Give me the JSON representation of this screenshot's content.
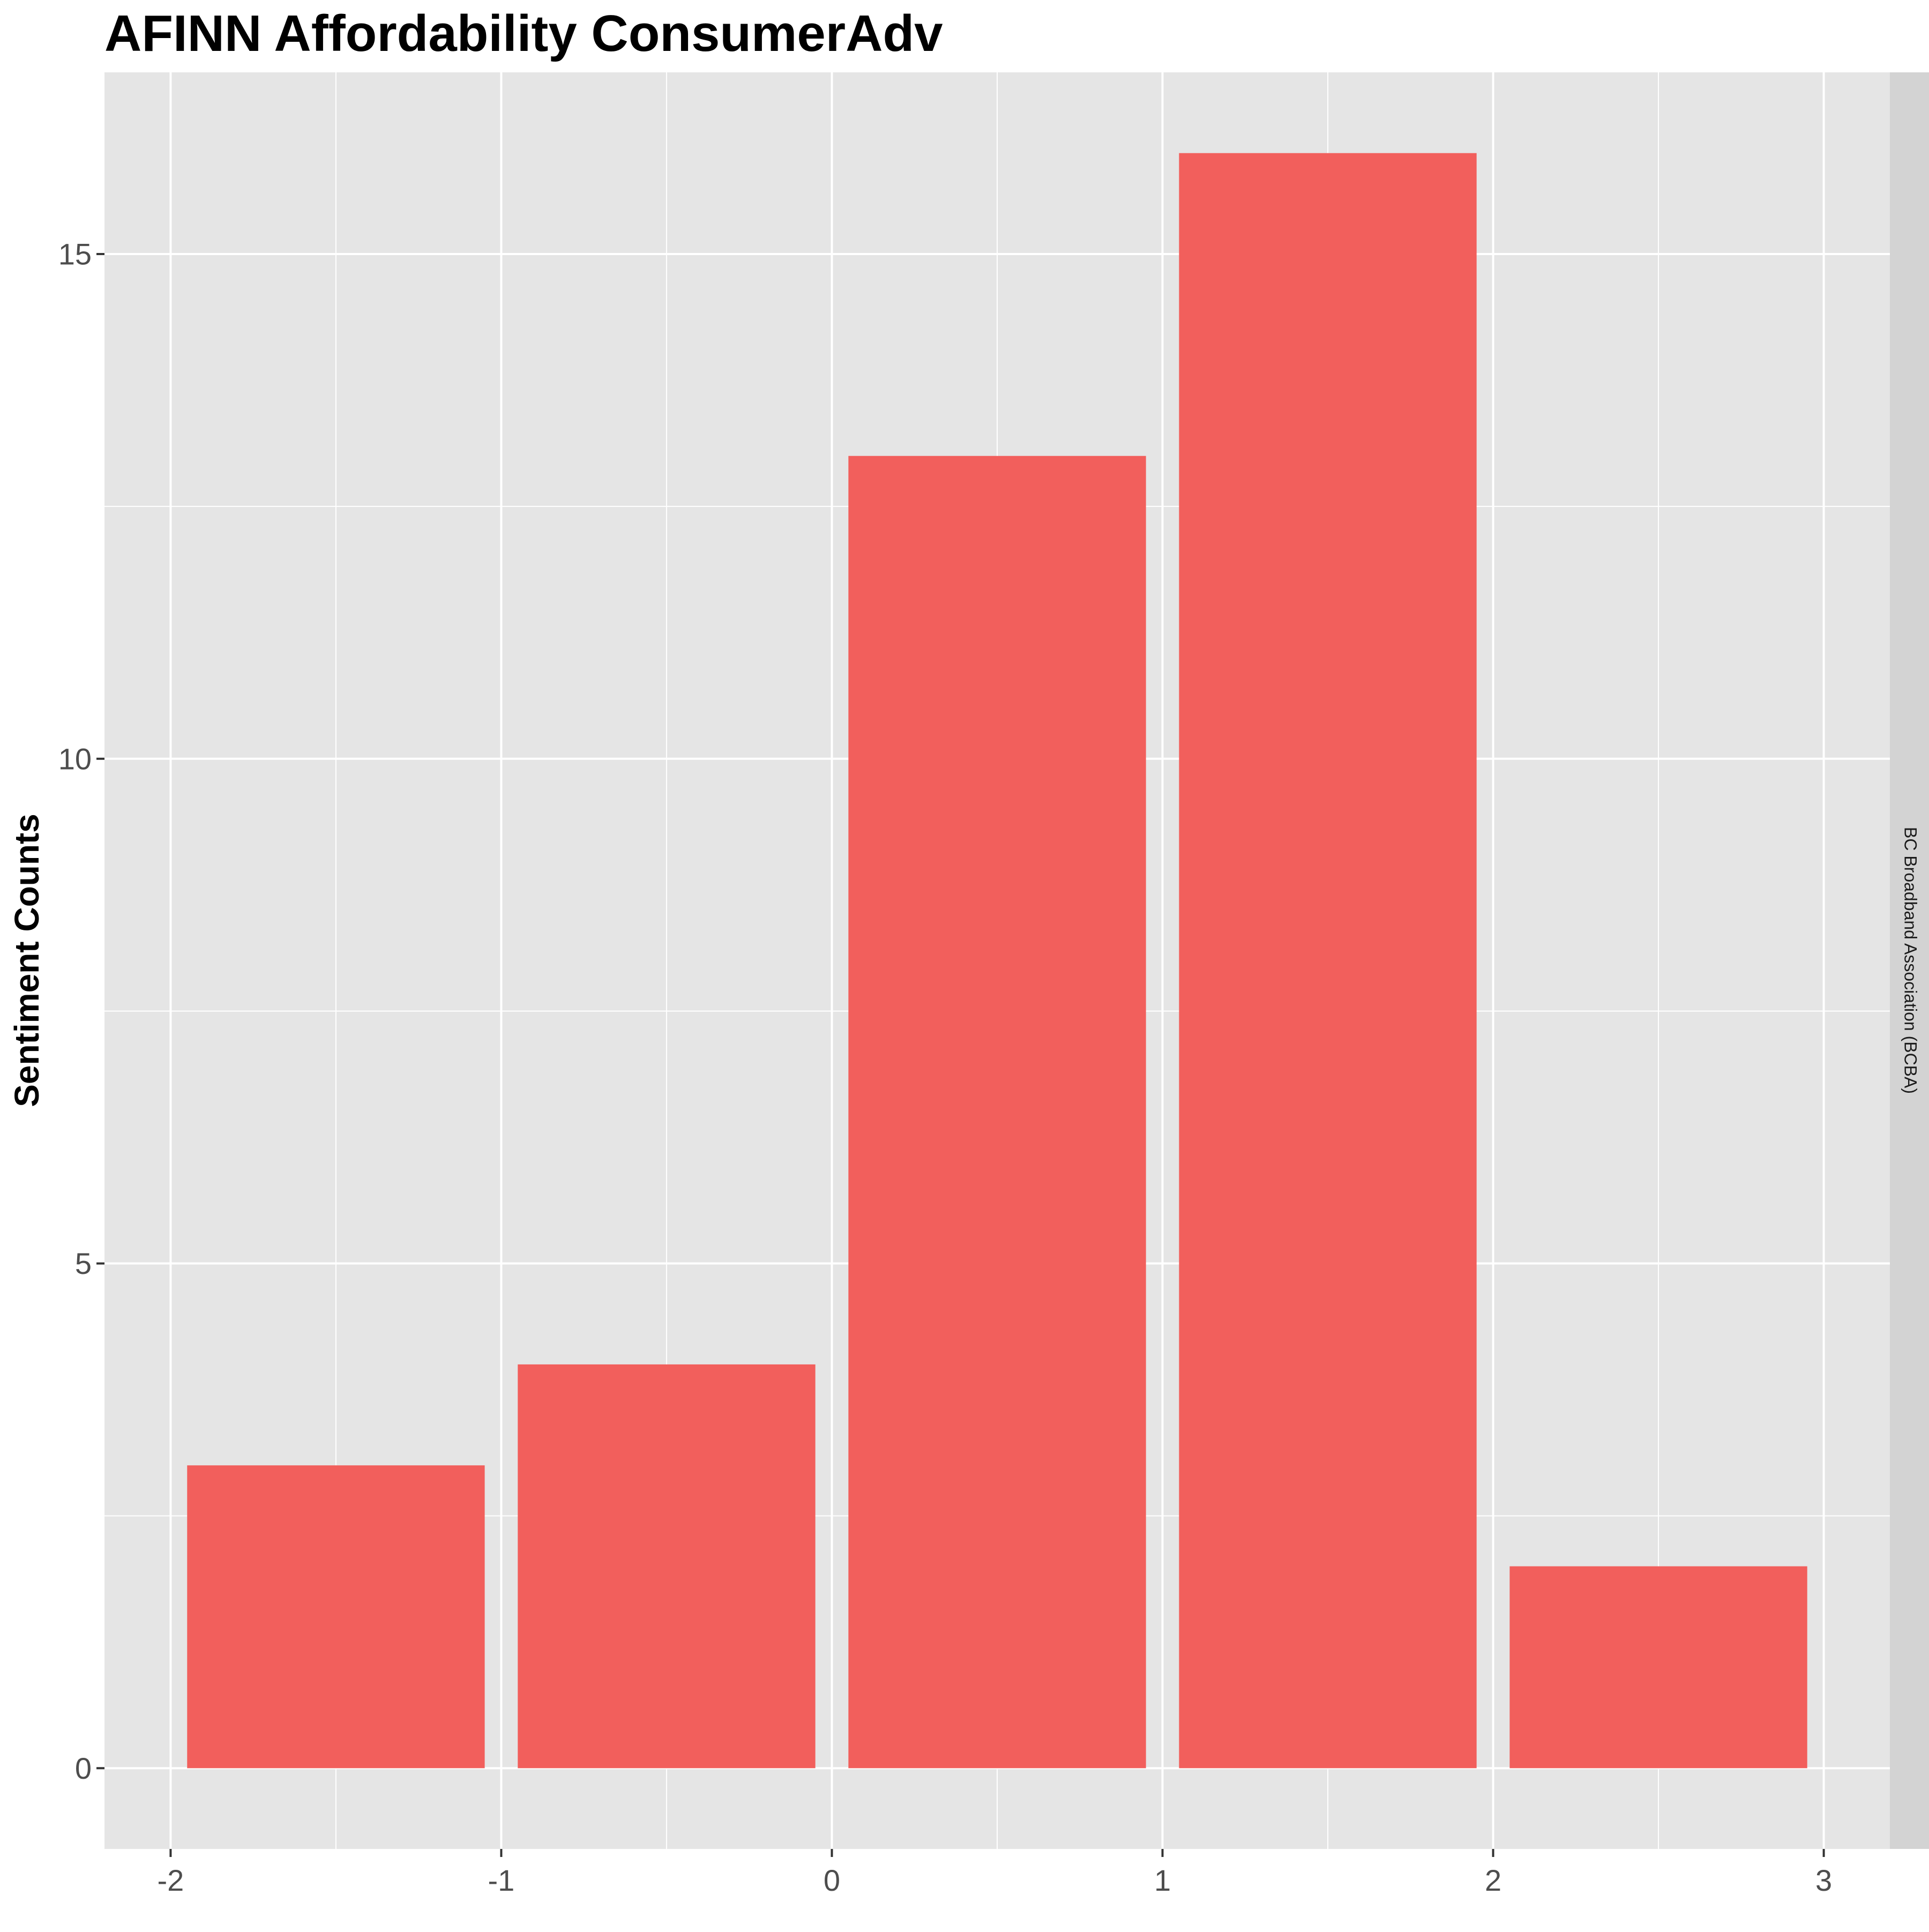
{
  "chart_data": {
    "type": "bar",
    "title": "AFINN Affordability ConsumerAdv",
    "xlabel": "",
    "ylabel": "Sentiment Counts",
    "facet_label": "BC Broadband Association (BCBA)",
    "x": [
      -1.5,
      -0.5,
      0.5,
      1.5,
      2.5
    ],
    "values": [
      3,
      4,
      13,
      16,
      2
    ],
    "xlim": [
      -2.2,
      3.2
    ],
    "ylim": [
      -0.8,
      16.8
    ],
    "x_ticks": [
      -2,
      -1,
      0,
      1,
      2,
      3
    ],
    "x_tick_labels": [
      "-2",
      "-1",
      "0",
      "1",
      "2",
      "3"
    ],
    "y_ticks": [
      0,
      5,
      10,
      15
    ],
    "y_tick_labels": [
      "0",
      "5",
      "10",
      "15"
    ],
    "grid": true,
    "legend": "none",
    "colors": {
      "bar": "#F25F5C",
      "panel": "#E5E5E5",
      "grid": "#FFFFFF",
      "strip": "#D3D3D3"
    }
  }
}
